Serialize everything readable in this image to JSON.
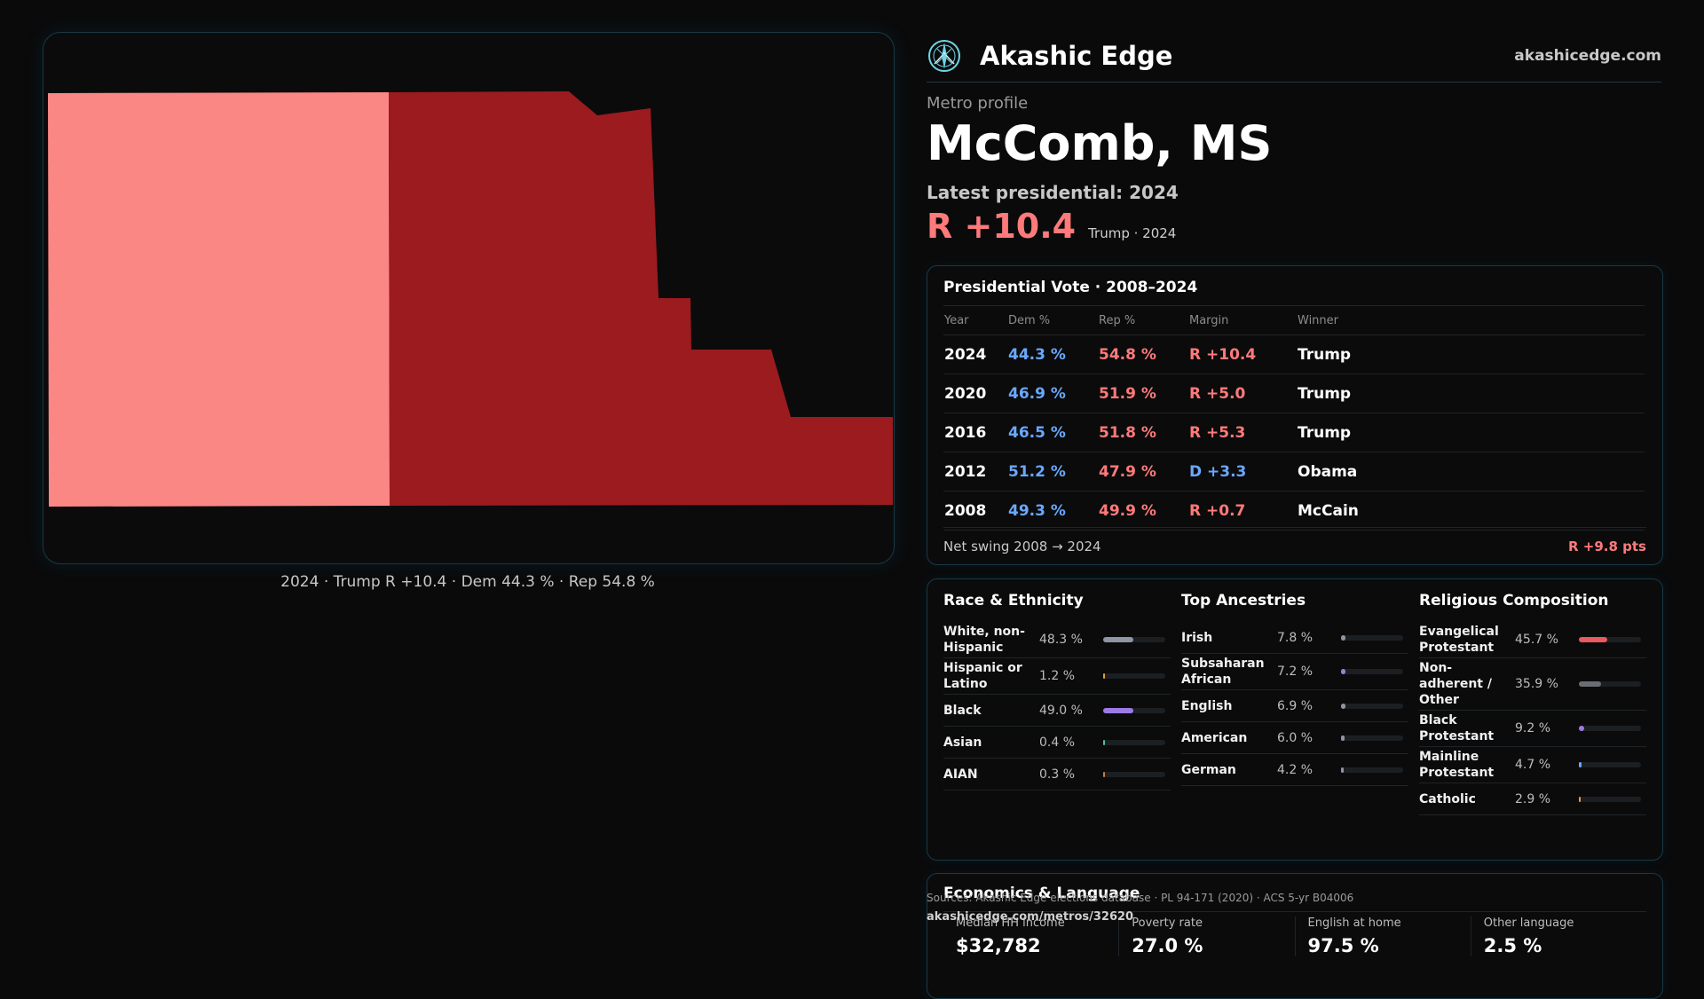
{
  "map": {
    "caption": "2024 · Trump R +10.4 · Dem 44.3 % · Rep 54.8 %",
    "colors": {
      "light_rep": "#fb8784",
      "dark_rep": "#9b1b1f"
    }
  },
  "header": {
    "brand": "Akashic Edge",
    "site": "akashicedge.com",
    "logo_icon": "compass-rose-icon"
  },
  "profile": {
    "label": "Metro profile",
    "name": "McComb, MS",
    "latest": "Latest presidential: 2024",
    "margin": "R +10.4",
    "margin_sub": "Trump · 2024"
  },
  "vote": {
    "title": "Presidential Vote · 2008–2024",
    "headers": {
      "year": "Year",
      "dem": "Dem %",
      "rep": "Rep %",
      "margin": "Margin",
      "winner": "Winner"
    },
    "rows": [
      {
        "year": "2024",
        "dem": "44.3 %",
        "rep": "54.8 %",
        "margin": "R +10.4",
        "party": "R",
        "winner": "Trump"
      },
      {
        "year": "2020",
        "dem": "46.9 %",
        "rep": "51.9 %",
        "margin": "R +5.0",
        "party": "R",
        "winner": "Trump"
      },
      {
        "year": "2016",
        "dem": "46.5 %",
        "rep": "51.8 %",
        "margin": "R +5.3",
        "party": "R",
        "winner": "Trump"
      },
      {
        "year": "2012",
        "dem": "51.2 %",
        "rep": "47.9 %",
        "margin": "D +3.3",
        "party": "D",
        "winner": "Obama"
      },
      {
        "year": "2008",
        "dem": "49.3 %",
        "rep": "49.9 %",
        "margin": "R +0.7",
        "party": "R",
        "winner": "McCain"
      }
    ],
    "net_swing_label": "Net swing 2008 → 2024",
    "net_swing_value": "R +9.8 pts"
  },
  "demographics": {
    "race": {
      "title": "Race & Ethnicity",
      "items": [
        {
          "label": "White, non-Hispanic",
          "pct": "48.3 %",
          "value": 48.3,
          "color": "#8d96a4"
        },
        {
          "label": "Hispanic or Latino",
          "pct": "1.2 %",
          "value": 1.2,
          "color": "#e0a040"
        },
        {
          "label": "Black",
          "pct": "49.0 %",
          "value": 49.0,
          "color": "#9c7be6"
        },
        {
          "label": "Asian",
          "pct": "0.4 %",
          "value": 0.4,
          "color": "#55c0a0"
        },
        {
          "label": "AIAN",
          "pct": "0.3 %",
          "value": 0.3,
          "color": "#c08050"
        }
      ]
    },
    "ancestry": {
      "title": "Top Ancestries",
      "items": [
        {
          "label": "Irish",
          "pct": "7.8 %",
          "value": 7.8,
          "color": "#8d96a4"
        },
        {
          "label": "Subsaharan African",
          "pct": "7.2 %",
          "value": 7.2,
          "color": "#9c7be6"
        },
        {
          "label": "English",
          "pct": "6.9 %",
          "value": 6.9,
          "color": "#8d96a4"
        },
        {
          "label": "American",
          "pct": "6.0 %",
          "value": 6.0,
          "color": "#8d96a4"
        },
        {
          "label": "German",
          "pct": "4.2 %",
          "value": 4.2,
          "color": "#8d96a4"
        }
      ]
    },
    "religion": {
      "title": "Religious Composition",
      "items": [
        {
          "label": "Evangelical Protestant",
          "pct": "45.7 %",
          "value": 45.7,
          "color": "#e85a5e"
        },
        {
          "label": "Non-adherent / Other",
          "pct": "35.9 %",
          "value": 35.9,
          "color": "#6a6e74"
        },
        {
          "label": "Black Protestant",
          "pct": "9.2 %",
          "value": 9.2,
          "color": "#9c7be6"
        },
        {
          "label": "Mainline Protestant",
          "pct": "4.7 %",
          "value": 4.7,
          "color": "#6aa8ff"
        },
        {
          "label": "Catholic",
          "pct": "2.9 %",
          "value": 2.9,
          "color": "#e0a040"
        }
      ]
    }
  },
  "economics": {
    "title": "Economics & Language",
    "cells": [
      {
        "label": "Median HH income",
        "value": "$32,782"
      },
      {
        "label": "Poverty rate",
        "value": "27.0 %"
      },
      {
        "label": "English at home",
        "value": "97.5 %"
      },
      {
        "label": "Other language",
        "value": "2.5 %"
      }
    ]
  },
  "footer": {
    "sources": "Sources: Akashic Edge elections database · PL 94-171 (2020) · ACS 5-yr B04006",
    "url": "akashicedge.com/metros/32620"
  }
}
